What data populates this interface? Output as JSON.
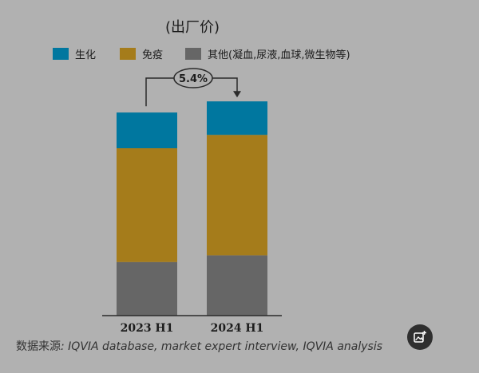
{
  "chart_data": {
    "type": "bar",
    "stacked": true,
    "title": "(出厂价)",
    "categories": [
      "2023 H1",
      "2024 H1"
    ],
    "series": [
      {
        "name": "生化",
        "color": "#00779f",
        "values": [
          16,
          15
        ]
      },
      {
        "name": "免疫",
        "color": "#a57c1b",
        "values": [
          51,
          54
        ]
      },
      {
        "name": "其他(凝血,尿液,血球,微生物等)",
        "color": "#666666",
        "values": [
          24,
          27
        ]
      }
    ],
    "annotation": {
      "label": "5.4%",
      "from": "2023 H1",
      "to": "2024 H1"
    },
    "legend_position": "top",
    "grid": false,
    "ylim": [
      0,
      100
    ]
  },
  "source": {
    "prefix": "数据来源",
    "text": ": IQVIA database, market expert interview, IQVIA analysis"
  },
  "ui": {
    "action_button_icon": "add-image-icon"
  }
}
